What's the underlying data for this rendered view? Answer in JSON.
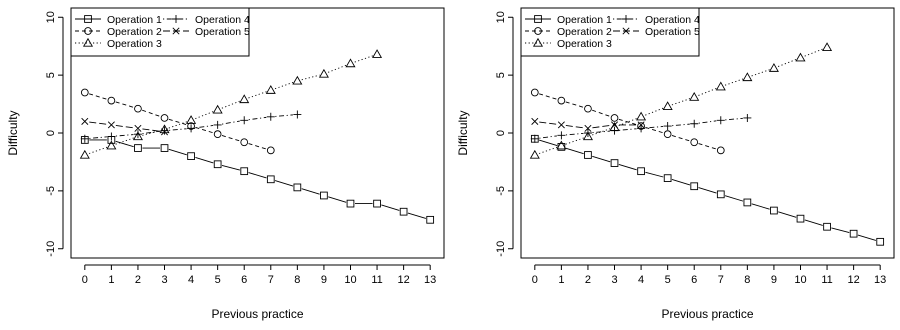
{
  "chart_data": [
    {
      "type": "line",
      "xlabel": "Previous practice",
      "ylabel": "Difficulty",
      "xlim": [
        0,
        13
      ],
      "ylim": [
        -10,
        10
      ],
      "x_ticks": [
        0,
        1,
        2,
        3,
        4,
        5,
        6,
        7,
        8,
        9,
        10,
        11,
        12,
        13
      ],
      "y_ticks": [
        -10,
        -5,
        0,
        5,
        10
      ],
      "grid": false,
      "legend_position": "top-left",
      "series": [
        {
          "name": "Operation 1",
          "marker": "square",
          "line_style": "solid",
          "x": [
            0,
            1,
            2,
            3,
            4,
            5,
            6,
            7,
            8,
            9,
            10,
            11,
            12,
            13
          ],
          "y": [
            -0.6,
            -0.6,
            -1.3,
            -1.3,
            -2.0,
            -2.7,
            -3.3,
            -4.0,
            -4.7,
            -5.4,
            -6.1,
            -6.1,
            -6.8,
            -7.5
          ]
        },
        {
          "name": "Operation 2",
          "marker": "circle",
          "line_style": "dashed",
          "x": [
            0,
            1,
            2,
            3,
            4,
            5,
            6,
            7
          ],
          "y": [
            3.5,
            2.8,
            2.1,
            1.3,
            0.6,
            -0.1,
            -0.8,
            -1.5
          ]
        },
        {
          "name": "Operation 3",
          "marker": "triangle",
          "line_style": "dotted",
          "x": [
            0,
            1,
            2,
            3,
            4,
            5,
            6,
            7,
            8,
            9,
            10,
            11
          ],
          "y": [
            -1.9,
            -1.1,
            -0.3,
            0.3,
            1.1,
            2.0,
            2.9,
            3.7,
            4.5,
            5.1,
            6.0,
            6.8
          ]
        },
        {
          "name": "Operation 4",
          "marker": "plus",
          "line_style": "dotdash",
          "x": [
            0,
            1,
            2,
            3,
            4,
            5,
            6,
            7,
            8
          ],
          "y": [
            -0.5,
            -0.3,
            -0.1,
            0.2,
            0.4,
            0.7,
            1.1,
            1.4,
            1.6
          ]
        },
        {
          "name": "Operation 5",
          "marker": "cross",
          "line_style": "longdash",
          "x": [
            0,
            1,
            2,
            3
          ],
          "y": [
            1.0,
            0.7,
            0.4,
            0.1
          ]
        }
      ]
    },
    {
      "type": "line",
      "xlabel": "Previous practice",
      "ylabel": "Difficulty",
      "xlim": [
        0,
        13
      ],
      "ylim": [
        -10,
        10
      ],
      "x_ticks": [
        0,
        1,
        2,
        3,
        4,
        5,
        6,
        7,
        8,
        9,
        10,
        11,
        12,
        13
      ],
      "y_ticks": [
        -10,
        -5,
        0,
        5,
        10
      ],
      "grid": false,
      "legend_position": "top-left",
      "series": [
        {
          "name": "Operation 1",
          "marker": "square",
          "line_style": "solid",
          "x": [
            0,
            1,
            2,
            3,
            4,
            5,
            6,
            7,
            8,
            9,
            10,
            11,
            12,
            13
          ],
          "y": [
            -0.5,
            -1.2,
            -1.9,
            -2.6,
            -3.3,
            -3.9,
            -4.6,
            -5.3,
            -6.0,
            -6.7,
            -7.4,
            -8.1,
            -8.7,
            -9.4
          ]
        },
        {
          "name": "Operation 2",
          "marker": "circle",
          "line_style": "dashed",
          "x": [
            0,
            1,
            2,
            3,
            4,
            5,
            6,
            7
          ],
          "y": [
            3.5,
            2.8,
            2.1,
            1.3,
            0.6,
            -0.1,
            -0.8,
            -1.5
          ]
        },
        {
          "name": "Operation 3",
          "marker": "triangle",
          "line_style": "dotted",
          "x": [
            0,
            1,
            2,
            3,
            4,
            5,
            6,
            7,
            8,
            9,
            10,
            11
          ],
          "y": [
            -1.9,
            -1.1,
            -0.3,
            0.5,
            1.4,
            2.3,
            3.1,
            4.0,
            4.8,
            5.6,
            6.5,
            7.4
          ]
        },
        {
          "name": "Operation 4",
          "marker": "plus",
          "line_style": "dotdash",
          "x": [
            0,
            1,
            2,
            3,
            4,
            5,
            6,
            7,
            8
          ],
          "y": [
            -0.5,
            -0.2,
            0.0,
            0.2,
            0.4,
            0.6,
            0.8,
            1.1,
            1.3
          ]
        },
        {
          "name": "Operation 5",
          "marker": "cross",
          "line_style": "longdash",
          "x": [
            0,
            1,
            2,
            3,
            4
          ],
          "y": [
            1.0,
            0.7,
            0.4,
            0.7,
            0.7
          ]
        }
      ]
    }
  ]
}
